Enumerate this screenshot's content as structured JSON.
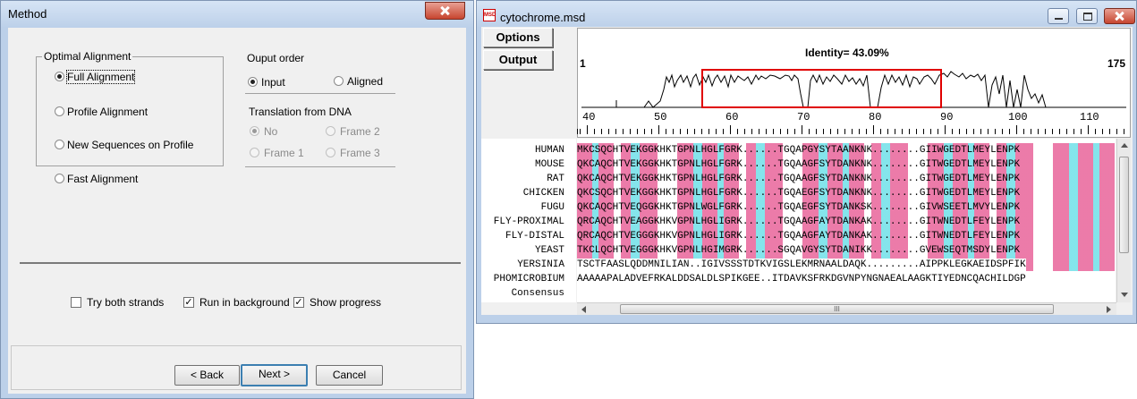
{
  "method_dialog": {
    "title": "Method",
    "optimal_group_label": "Optimal Alignment",
    "full_alignment": "Full Alignment",
    "profile_alignment": "Profile Alignment",
    "new_sequences": "New Sequences on Profile",
    "fast_alignment": "Fast Alignment",
    "output_order_label": "Ouput order",
    "input_label": "Input",
    "aligned_label": "Aligned",
    "translation_label": "Translation from DNA",
    "no_label": "No",
    "frame1": "Frame 1",
    "frame2": "Frame 2",
    "frame3": "Frame 3",
    "try_both_strands": "Try both strands",
    "run_in_background": "Run in background",
    "show_progress": "Show progress",
    "back_button": "< Back",
    "next_button": "Next >",
    "cancel_button": "Cancel",
    "state": {
      "method": "Full Alignment",
      "order": "Input",
      "translation": "No",
      "try_both": false,
      "background": true,
      "progress": true
    }
  },
  "msd_window": {
    "title": "cytochrome.msd",
    "app_icon": "MSD",
    "options_button": "Options",
    "output_button": "Output",
    "identity": "Identity= 43.09%",
    "range_start": "1",
    "range_end": "175",
    "ruler_labels": [
      "40",
      "50",
      "60",
      "70",
      "80",
      "90",
      "100",
      "110"
    ],
    "scroll_label": "III",
    "sequence_names": [
      "HUMAN",
      "MOUSE",
      "RAT",
      "CHICKEN",
      "FUGU",
      "FLY-PROXIMAL",
      "FLY-DISTAL",
      "YEAST",
      "YERSINIA",
      "PHOMICROBIUM",
      "Consensus"
    ],
    "sequences": [
      "MKCSQCHTVEKGGKHKTGPNLHGLFGRK......TGQAPGYSYTAANKNK........GIIWGEDTLMEYLENPK",
      "QKCAQCHTVEKGGKHKTGPNLHGLFGRK......TGQAAGFSYTDANKNK........GITWGEDTLMEYLENPK",
      "QKCAQCHTVEKGGKHKTGPNLHGLFGRK......TGQAAGFSYTDANKNK........GITWGEDTLMEYLENPK",
      "QKCSQCHTVEKGGKHKTGPNLHGLFGRK......TGQAEGFSYTDANKNK........GITWGEDTLMEYLENPK",
      "QKCAQCHTVEQGGKHKTGPNLWGLFGRK......TGQAEGFSYTDANKSK........GIVWSEETLMVYLENPK",
      "QRCAQCHTVEAGGKHKVGPNLHGLIGRK......TGQAAGFAYTDANKAK........GITWNEDTLFEYLENPK",
      "QRCAQCHTVEGGGKHKVGPNLHGLIGRK......TGQAAGFAYTDANKAK........GITWNEDTLFEYLENPK",
      "TKCLQCHTVEGGGKHKVGPNLHGIMGRK......SGQAVGYSYTDANIKK........GVEWSEQTMSDYLENPK",
      "TSCTFAASLQDDMNILIAN..IGIVSSSTDTKVIGSLEKMRNAALDAQK.........AIPPKLEGKAEIDSPFIK",
      "AAAAAPALADVEFRKALDDSALDLSPIKGEE..ITDAVKSFRKDGVNPYNGNAEALAAGKTIYEDNCQACHILDGP",
      ""
    ]
  }
}
